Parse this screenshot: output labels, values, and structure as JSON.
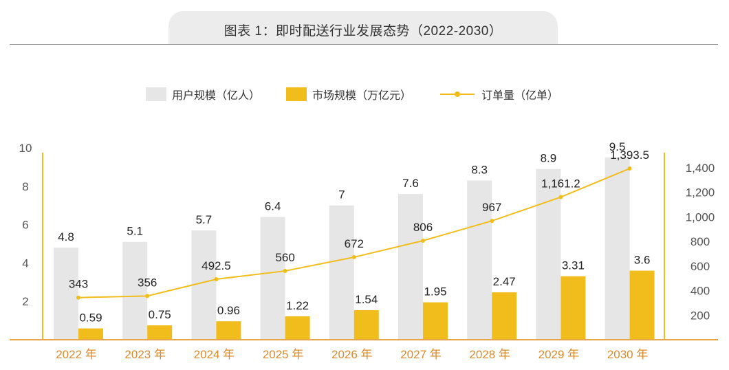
{
  "title": "图表 1：即时配送行业发展态势（2022-2030）",
  "chart_data": {
    "type": "bar",
    "categories": [
      "2022 年",
      "2023 年",
      "2024 年",
      "2025 年",
      "2026 年",
      "2027 年",
      "2028 年",
      "2029 年",
      "2030 年"
    ],
    "series": [
      {
        "name": "用户规模（亿人）",
        "type": "bar",
        "axis": "left",
        "color": "#e6e6e6",
        "values": [
          4.8,
          5.1,
          5.7,
          6.4,
          7,
          7.6,
          8.3,
          8.9,
          9.5
        ],
        "labels": [
          "4.8",
          "5.1",
          "5.7",
          "6.4",
          "7",
          "7.6",
          "8.3",
          "8.9",
          "9.5"
        ]
      },
      {
        "name": "市场规模（万亿元）",
        "type": "bar",
        "axis": "left",
        "color": "#f0bd1c",
        "values": [
          0.59,
          0.75,
          0.96,
          1.22,
          1.54,
          1.95,
          2.47,
          3.31,
          3.6
        ],
        "labels": [
          "0.59",
          "0.75",
          "0.96",
          "1.22",
          "1.54",
          "1.95",
          "2.47",
          "3.31",
          "3.6"
        ]
      },
      {
        "name": "订单量（亿单）",
        "type": "line",
        "axis": "right",
        "color": "#f0bd1c",
        "values": [
          343,
          356,
          492.5,
          560,
          672,
          806,
          967,
          1161.2,
          1393.5
        ],
        "labels": [
          "343",
          "356",
          "492.5",
          "560",
          "672",
          "806",
          "967",
          "1,161.2",
          "1,393.5"
        ]
      }
    ],
    "y_left": {
      "ylim": [
        0,
        10
      ],
      "ticks": [
        "2",
        "4",
        "6",
        "8",
        "10"
      ]
    },
    "y_right": {
      "ylim": [
        0,
        1500
      ],
      "ticks": [
        "200",
        "400",
        "600",
        "800",
        "1,000",
        "1,200",
        "1,400"
      ]
    },
    "legend": "top-center",
    "grid": false,
    "colors": {
      "axis": "#f0bd1c",
      "baseline": "#e8a64a",
      "tick_text": "#555555",
      "category_text": "#d98a2c"
    }
  }
}
